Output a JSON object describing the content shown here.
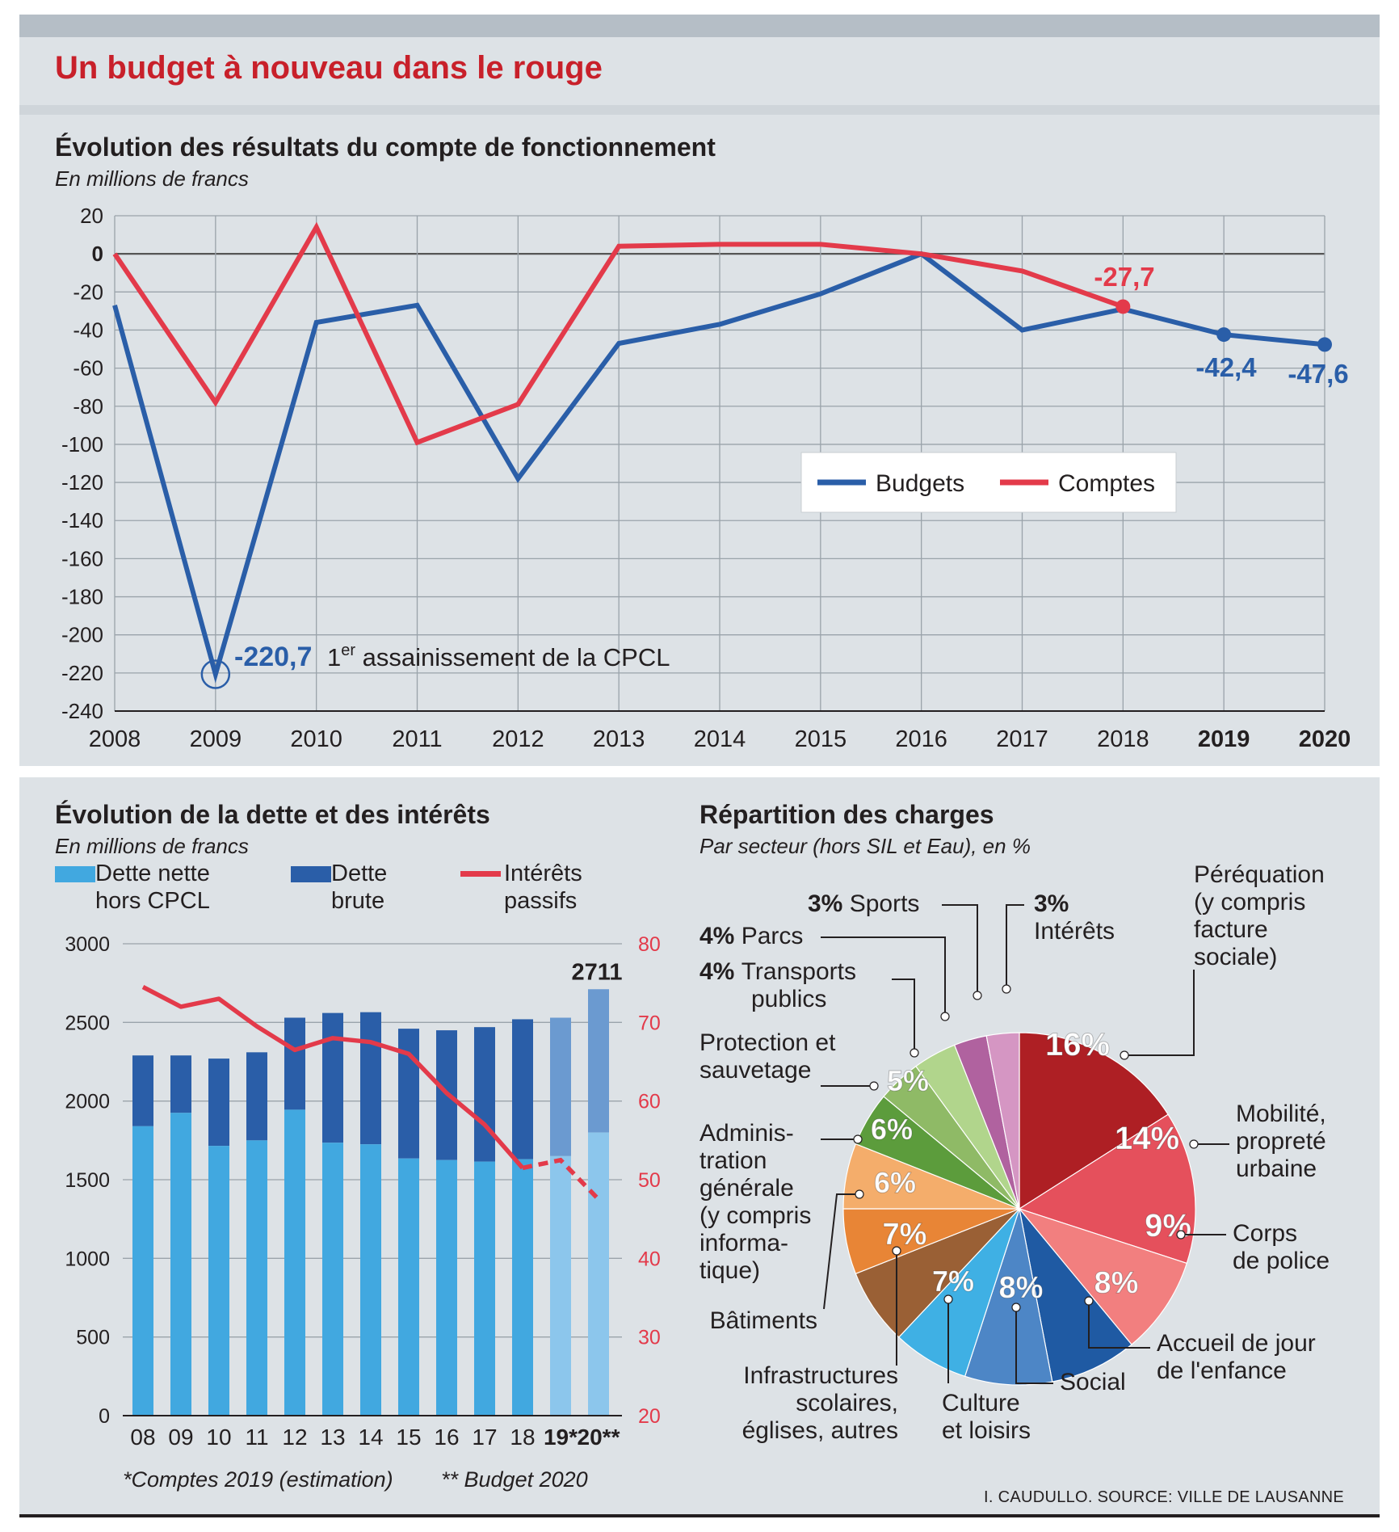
{
  "title": "Un budget à nouveau dans le rouge",
  "colors": {
    "red_title": "#c8202a",
    "blue_line": "#2a5ea8",
    "red_line": "#e33a4a",
    "dette_nette": "#41a8e0",
    "dette_nette_light": "#8cc6ec",
    "dette_brute": "#2a5ea8",
    "dette_brute_light": "#6b9ad0",
    "panel_bg": "#dde2e6",
    "header_bg": "#b5bec6"
  },
  "line_chart": {
    "title": "Évolution des résultats du compte de fonctionnement",
    "subtitle": "En millions de francs",
    "annotation_value": "-220,7",
    "annotation_text_pre": "1",
    "annotation_text_sup": "er",
    "annotation_text_post": " assainissement de la CPCL",
    "label_comptes_2018": "-27,7",
    "label_budget_2019": "-42,4",
    "label_budget_2020": "-47,6",
    "legend": {
      "budgets": "Budgets",
      "comptes": "Comptes"
    }
  },
  "bar_chart": {
    "title": "Évolution de la dette et des intérêts",
    "subtitle": "En millions de francs",
    "legend": {
      "dette_nette_1": "Dette nette",
      "dette_nette_2": "hors CPCL",
      "dette_brute_1": "Dette",
      "dette_brute_2": "brute",
      "interets_1": "Intérêts",
      "interets_2": "passifs"
    },
    "top_label": "2711",
    "footnote_1": "*Comptes 2019 (estimation)",
    "footnote_2": "** Budget 2020"
  },
  "pie_chart": {
    "title": "Répartition des charges",
    "subtitle": "Par secteur (hors SIL et Eau), en %"
  },
  "credit": "I. CAUDULLO. SOURCE: VILLE DE LAUSANNE",
  "chart_data": [
    {
      "type": "line",
      "title": "Évolution des résultats du compte de fonctionnement",
      "ylabel": "En millions de francs",
      "ylim": [
        -240,
        20
      ],
      "yticks": [
        20,
        0,
        -20,
        -40,
        -60,
        -80,
        -100,
        -120,
        -140,
        -160,
        -180,
        -200,
        -220,
        -240
      ],
      "x": [
        "2008",
        "2009",
        "2010",
        "2011",
        "2012",
        "2013",
        "2014",
        "2015",
        "2016",
        "2017",
        "2018",
        "2019",
        "2020"
      ],
      "x_bold": [
        "2019",
        "2020"
      ],
      "series": [
        {
          "name": "Budgets",
          "color": "#2a5ea8",
          "values": [
            -27,
            -220.7,
            -36,
            -27,
            -118,
            -47,
            -37,
            -21,
            0,
            -40,
            -29,
            -42.4,
            -47.6
          ]
        },
        {
          "name": "Comptes",
          "color": "#e33a4a",
          "values": [
            0,
            -78,
            14,
            -99,
            -79,
            4,
            5,
            5,
            0,
            -9,
            -27.7,
            null,
            null
          ]
        }
      ],
      "legend": "right-center"
    },
    {
      "type": "bar",
      "title": "Évolution de la dette et des intérêts",
      "categories": [
        "08",
        "09",
        "10",
        "11",
        "12",
        "13",
        "14",
        "15",
        "16",
        "17",
        "18",
        "19*",
        "20**"
      ],
      "ylim": [
        0,
        3000
      ],
      "yticks": [
        0,
        500,
        1000,
        1500,
        2000,
        2500,
        3000
      ],
      "y2lim": [
        20,
        80
      ],
      "y2ticks": [
        20,
        30,
        40,
        50,
        60,
        70,
        80
      ],
      "series": [
        {
          "name": "Dette nette hors CPCL",
          "values": [
            1840,
            1925,
            1715,
            1750,
            1945,
            1735,
            1725,
            1635,
            1625,
            1615,
            1630,
            1650,
            1800
          ]
        },
        {
          "name": "Dette brute",
          "values": [
            2290,
            2290,
            2270,
            2310,
            2530,
            2560,
            2565,
            2460,
            2450,
            2470,
            2520,
            2530,
            2711
          ]
        },
        {
          "name": "Intérêts passifs",
          "axis": "right",
          "values": [
            74.5,
            72,
            73,
            69.5,
            66.5,
            68,
            67.5,
            66,
            61,
            57,
            51.5,
            52.5,
            47.5
          ],
          "dashed_from": "18"
        }
      ]
    },
    {
      "type": "pie",
      "title": "Répartition des charges",
      "slices": [
        {
          "label": "Péréquation (y compris facture sociale)",
          "lines": [
            "Péréquation",
            "(y compris",
            "facture",
            "sociale)"
          ],
          "value": 16,
          "pct": "16%",
          "color": "#ae1f24"
        },
        {
          "label": "Mobilité, propreté urbaine",
          "lines": [
            "Mobilité,",
            "propreté",
            "urbaine"
          ],
          "value": 14,
          "pct": "14%",
          "color": "#e5505c"
        },
        {
          "label": "Corps de police",
          "lines": [
            "Corps",
            "de police"
          ],
          "value": 9,
          "pct": "9%",
          "color": "#f27f7f"
        },
        {
          "label": "Accueil de jour de l'enfance",
          "lines": [
            "Accueil de jour",
            "de l'enfance"
          ],
          "value": 8,
          "pct": "8%",
          "color": "#1f5aa3"
        },
        {
          "label": "Social",
          "lines": [
            "Social"
          ],
          "value": 8,
          "pct": "8%",
          "color": "#4d86c6"
        },
        {
          "label": "Culture et loisirs",
          "lines": [
            "Culture",
            "et loisirs"
          ],
          "value": 7,
          "pct": "7%",
          "color": "#3fb0e4"
        },
        {
          "label": "Infrastructures scolaires, églises, autres",
          "lines": [
            "Infrastructures",
            "scolaires,",
            "églises, autres"
          ],
          "value": 7,
          "pct": "7%",
          "color": "#9a6035"
        },
        {
          "label": "Bâtiments",
          "lines": [
            "Bâtiments"
          ],
          "value": 6,
          "pct": "6%",
          "color": "#e88536"
        },
        {
          "label": "Administration générale (y compris informatique)",
          "lines": [
            "Adminis-",
            "tration",
            "générale",
            "(y compris",
            "informa-",
            "tique)"
          ],
          "value": 6,
          "pct": "6%",
          "color": "#f4ad6b"
        },
        {
          "label": "Protection et sauvetage",
          "lines": [
            "Protection et",
            "sauvetage"
          ],
          "value": 5,
          "pct": "5%",
          "color": "#5c9c3c"
        },
        {
          "label": "Transports publics",
          "lines": [
            "Transports",
            "publics"
          ],
          "value": 4,
          "pct": "4%",
          "color": "#8fba66"
        },
        {
          "label": "Parcs",
          "lines": [
            "Parcs"
          ],
          "value": 4,
          "pct": "4%",
          "color": "#b1d58c"
        },
        {
          "label": "Sports",
          "lines": [
            "Sports"
          ],
          "value": 3,
          "pct": "3%",
          "color": "#b0629f"
        },
        {
          "label": "Intérêts",
          "lines": [
            "Intérêts"
          ],
          "value": 3,
          "pct": "3%",
          "color": "#d596c3"
        }
      ]
    }
  ]
}
